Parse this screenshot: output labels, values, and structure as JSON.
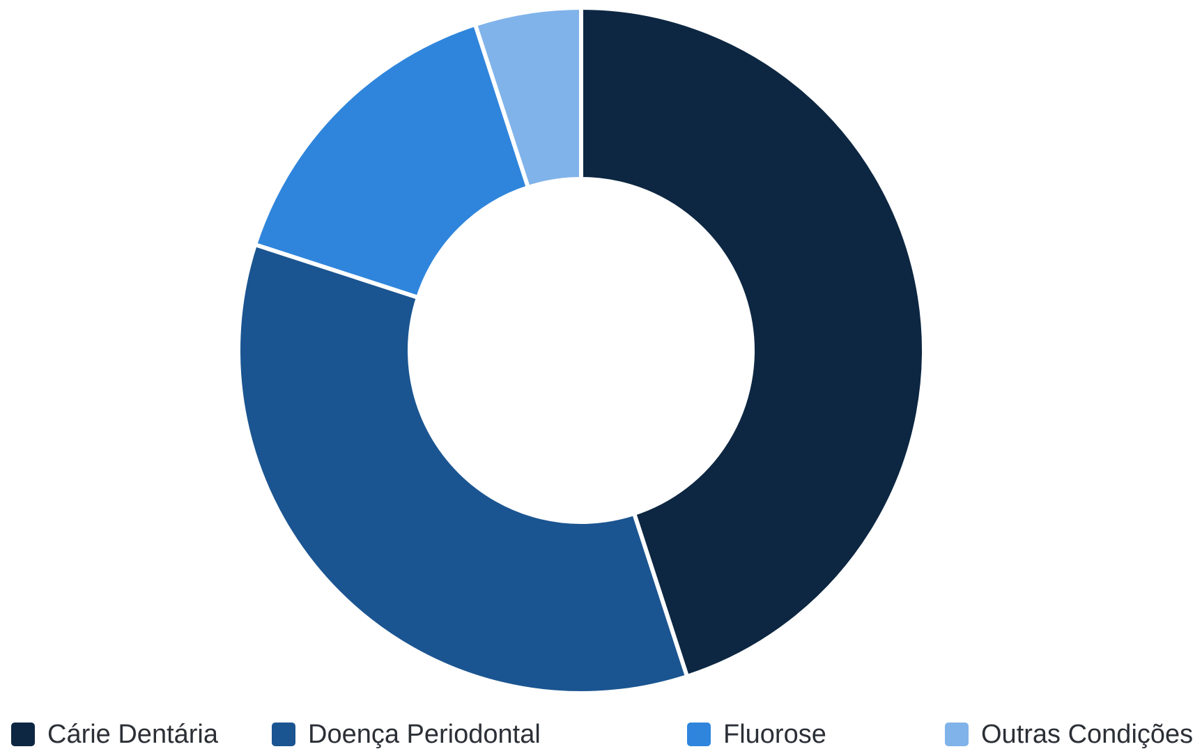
{
  "chart_data": {
    "type": "pie",
    "variant": "donut",
    "title": "",
    "categories": [
      "Cárie Dentária",
      "Doença Periodontal",
      "Fluorose",
      "Outras Condições"
    ],
    "values": [
      45,
      35,
      15,
      5
    ],
    "colors": [
      "#0d2742",
      "#1b5591",
      "#2f85dc",
      "#80b3ea"
    ],
    "legend": "bottom"
  }
}
